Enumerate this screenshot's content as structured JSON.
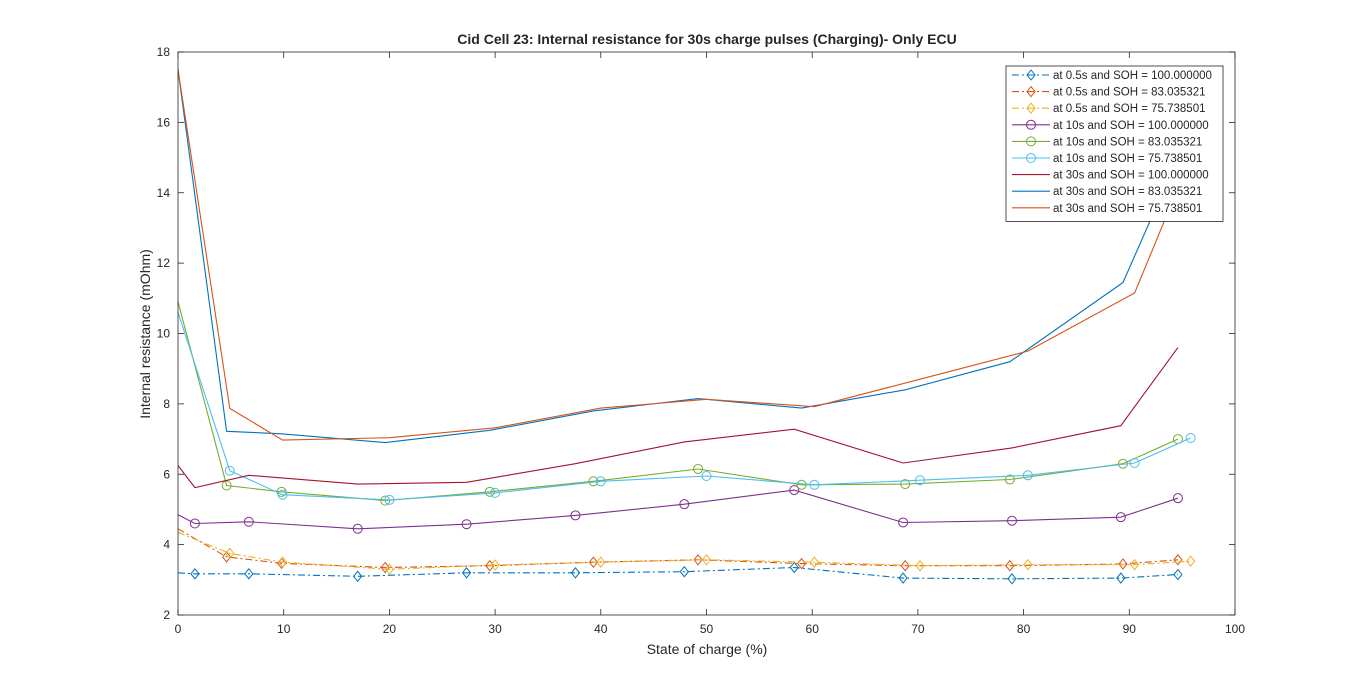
{
  "chart_data": {
    "type": "line",
    "title": "Cid Cell 23: Internal resistance for 30s charge pulses (Charging)- Only ECU",
    "xlabel": "State of charge (%)",
    "ylabel": "Internal resistance (mOhm)",
    "xlim": [
      0,
      100
    ],
    "ylim": [
      2,
      18
    ],
    "xticks": [
      0,
      10,
      20,
      30,
      40,
      50,
      60,
      70,
      80,
      90,
      100
    ],
    "yticks": [
      2,
      4,
      6,
      8,
      10,
      12,
      14,
      16,
      18
    ],
    "grid": false,
    "legend_position": "top-right",
    "series": [
      {
        "name": "at 0.5s and SOH = 100.000000",
        "color": "#0072BD",
        "dash": "dashdot",
        "marker": "diamond",
        "x": [
          0,
          1.6,
          6.7,
          17,
          27.3,
          37.6,
          47.9,
          58.3,
          68.6,
          78.9,
          89.2,
          94.6
        ],
        "y": [
          3.2,
          3.17,
          3.17,
          3.1,
          3.2,
          3.2,
          3.23,
          3.35,
          3.05,
          3.03,
          3.05,
          3.15
        ]
      },
      {
        "name": "at 0.5s and SOH = 83.035321",
        "color": "#D95319",
        "dash": "dashdot",
        "marker": "diamond",
        "x": [
          0,
          4.6,
          9.8,
          19.6,
          29.5,
          39.3,
          49.2,
          59,
          68.8,
          78.7,
          89.4,
          94.6
        ],
        "y": [
          4.45,
          3.65,
          3.47,
          3.35,
          3.4,
          3.5,
          3.57,
          3.46,
          3.4,
          3.4,
          3.45,
          3.57
        ]
      },
      {
        "name": "at 0.5s and SOH = 75.738501",
        "color": "#EDB120",
        "dash": "dashdot",
        "marker": "diamond",
        "x": [
          0,
          4.9,
          9.9,
          20,
          30,
          40,
          50,
          60.2,
          70.2,
          80.4,
          90.5,
          95.8
        ],
        "y": [
          4.35,
          3.75,
          3.5,
          3.3,
          3.42,
          3.5,
          3.57,
          3.5,
          3.4,
          3.43,
          3.43,
          3.53
        ]
      },
      {
        "name": "at 10s and SOH = 100.000000",
        "color": "#7E2F8E",
        "dash": "solid",
        "marker": "circle",
        "x": [
          0,
          1.6,
          6.7,
          17,
          27.3,
          37.6,
          47.9,
          58.3,
          68.6,
          78.9,
          89.2,
          94.6
        ],
        "y": [
          4.85,
          4.6,
          4.65,
          4.45,
          4.58,
          4.83,
          5.15,
          5.55,
          4.63,
          4.68,
          4.78,
          5.32
        ]
      },
      {
        "name": "at 10s and SOH = 83.035321",
        "color": "#77AC30",
        "dash": "solid",
        "marker": "circle",
        "x": [
          0,
          4.6,
          9.8,
          19.6,
          29.5,
          39.3,
          49.2,
          59,
          68.8,
          78.7,
          89.4,
          94.6
        ],
        "y": [
          10.9,
          5.68,
          5.5,
          5.25,
          5.5,
          5.8,
          6.15,
          5.7,
          5.72,
          5.85,
          6.3,
          7.0
        ]
      },
      {
        "name": "at 10s and SOH = 75.738501",
        "color": "#4DBEEE",
        "dash": "solid",
        "marker": "circle",
        "x": [
          0,
          4.9,
          9.9,
          20,
          30,
          40,
          50,
          60.2,
          70.2,
          80.4,
          90.5,
          95.8
        ],
        "y": [
          10.6,
          6.1,
          5.42,
          5.27,
          5.47,
          5.8,
          5.95,
          5.7,
          5.83,
          5.97,
          6.32,
          7.03
        ]
      },
      {
        "name": "at 30s and SOH = 100.000000",
        "color": "#A2142F",
        "dash": "solid",
        "marker": "none",
        "x": [
          0,
          1.6,
          6.7,
          17,
          27.3,
          37.6,
          47.9,
          58.3,
          68.6,
          78.9,
          89.2,
          94.6
        ],
        "y": [
          6.25,
          5.62,
          5.97,
          5.72,
          5.77,
          6.3,
          6.92,
          7.28,
          6.32,
          6.75,
          7.38,
          9.6
        ]
      },
      {
        "name": "at 30s and SOH = 83.035321",
        "color": "#0072BD",
        "dash": "solid",
        "marker": "none",
        "x": [
          0,
          4.6,
          9.8,
          19.6,
          29.5,
          39.3,
          49.2,
          59,
          68.8,
          78.7,
          89.4,
          94.6
        ],
        "y": [
          17.5,
          7.22,
          7.15,
          6.9,
          7.25,
          7.8,
          8.15,
          7.88,
          8.4,
          9.2,
          11.45,
          15.0
        ]
      },
      {
        "name": "at 30s and SOH = 75.738501",
        "color": "#D95319",
        "dash": "solid",
        "marker": "none",
        "x": [
          0,
          4.9,
          9.9,
          20,
          30,
          40,
          50,
          60.2,
          70.2,
          80.4,
          90.5,
          95.8
        ],
        "y": [
          17.5,
          7.87,
          6.97,
          7.04,
          7.32,
          7.88,
          8.13,
          7.92,
          8.7,
          9.5,
          11.15,
          15.0
        ]
      }
    ]
  }
}
